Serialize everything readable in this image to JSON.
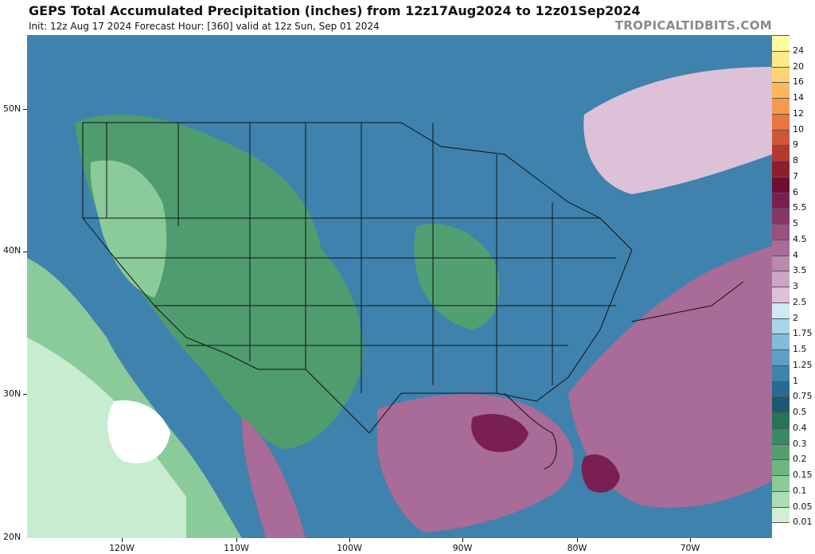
{
  "header": {
    "title": "GEPS Total Accumulated Precipitation (inches) from 12z17Aug2024 to 12z01Sep2024",
    "subtitle": "Init: 12z Aug 17 2024   Forecast Hour: [360]   valid at 12z Sun, Sep 01 2024",
    "brand": "TROPICALTIDBITS.COM"
  },
  "axes": {
    "lat_labels": [
      "50N",
      "40N",
      "30N",
      "20N"
    ],
    "lon_labels": [
      "120W",
      "110W",
      "100W",
      "90W",
      "80W",
      "70W"
    ]
  },
  "colorbar": {
    "levels": [
      {
        "label": "24",
        "color": "#fdfba0"
      },
      {
        "label": "20",
        "color": "#fde98a"
      },
      {
        "label": "16",
        "color": "#fdd375"
      },
      {
        "label": "14",
        "color": "#fbb65e"
      },
      {
        "label": "12",
        "color": "#f7994d"
      },
      {
        "label": "10",
        "color": "#e8763e"
      },
      {
        "label": "9",
        "color": "#cf5737"
      },
      {
        "label": "8",
        "color": "#b23b31"
      },
      {
        "label": "7",
        "color": "#8e1e2c"
      },
      {
        "label": "6",
        "color": "#6e0f33"
      },
      {
        "label": "5.5",
        "color": "#7a1f52"
      },
      {
        "label": "5",
        "color": "#883668"
      },
      {
        "label": "4.5",
        "color": "#985080"
      },
      {
        "label": "4",
        "color": "#a96b97"
      },
      {
        "label": "3.5",
        "color": "#bb88ae"
      },
      {
        "label": "3",
        "color": "#cca5c4"
      },
      {
        "label": "2.5",
        "color": "#dcc1d8"
      },
      {
        "label": "2",
        "color": "#cfe8f3"
      },
      {
        "label": "1.75",
        "color": "#a8d4e8"
      },
      {
        "label": "1.5",
        "color": "#82bcd9"
      },
      {
        "label": "1.25",
        "color": "#5e9fc5"
      },
      {
        "label": "1",
        "color": "#3f82ad"
      },
      {
        "label": "0.75",
        "color": "#286a94"
      },
      {
        "label": "0.5",
        "color": "#1b5a6f"
      },
      {
        "label": "0.4",
        "color": "#24745a"
      },
      {
        "label": "0.3",
        "color": "#388a63"
      },
      {
        "label": "0.2",
        "color": "#52a072"
      },
      {
        "label": "0.15",
        "color": "#6db684"
      },
      {
        "label": "0.1",
        "color": "#8bcb99"
      },
      {
        "label": "0.05",
        "color": "#addcb3"
      },
      {
        "label": "0.01",
        "color": "#d4eed6"
      },
      {
        "label": "",
        "color": "#ffffff"
      }
    ]
  },
  "map": {
    "ocean_color": "#3f82ad",
    "dry_color": "#c8ecd0",
    "green_color": "#3f9068",
    "wet_color": "#9b5a8c",
    "heavy_color": "#7a1f52"
  }
}
